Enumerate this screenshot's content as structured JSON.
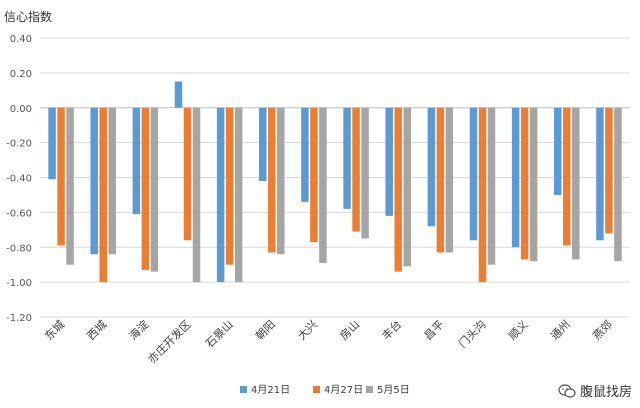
{
  "chart_data": {
    "type": "bar",
    "ylabel": "信心指数",
    "ylim": [
      -1.2,
      0.4
    ],
    "yticks": [
      "0.40",
      "0.20",
      "0.00",
      "-0.20",
      "-0.40",
      "-0.60",
      "-0.80",
      "-1.00",
      "-1.20"
    ],
    "grid": true,
    "legend_position": "bottom",
    "categories": [
      "东城",
      "西城",
      "海淀",
      "亦庄开发区",
      "石景山",
      "朝阳",
      "大兴",
      "房山",
      "丰台",
      "昌平",
      "门头沟",
      "顺义",
      "通州",
      "燕郊"
    ],
    "series": [
      {
        "name": "4月21日",
        "color": "#5B9BD5",
        "values": [
          -0.41,
          -0.84,
          -0.61,
          0.15,
          -1.0,
          -0.42,
          -0.54,
          -0.58,
          -0.62,
          -0.68,
          -0.76,
          -0.8,
          -0.5,
          -0.76
        ]
      },
      {
        "name": "4月27日",
        "color": "#ED7D31",
        "values": [
          -0.79,
          -1.0,
          -0.93,
          -0.76,
          -0.9,
          -0.83,
          -0.77,
          -0.71,
          -0.94,
          -0.83,
          -1.0,
          -0.87,
          -0.79,
          -0.72
        ]
      },
      {
        "name": "5月5日",
        "color": "#A5A5A5",
        "values": [
          -0.9,
          -0.84,
          -0.94,
          -1.0,
          -1.0,
          -0.84,
          -0.89,
          -0.75,
          -0.91,
          -0.83,
          -0.9,
          -0.88,
          -0.87,
          -0.88
        ]
      }
    ]
  },
  "watermark": {
    "text": "腹鼠找房",
    "icon": "wechat-icon"
  }
}
